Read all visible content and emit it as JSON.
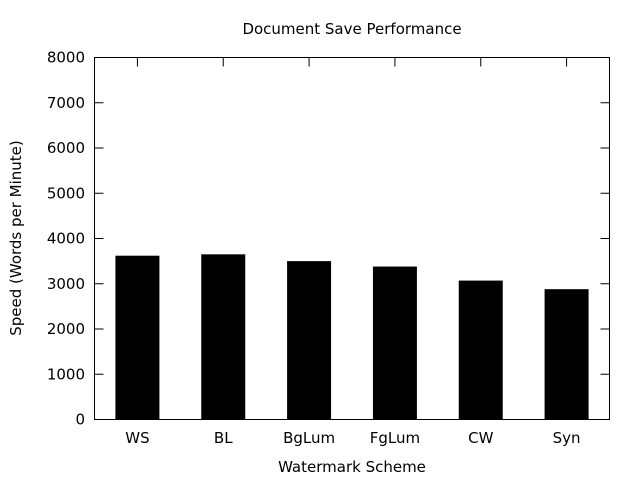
{
  "chart_data": {
    "type": "bar",
    "title": "Document Save Performance",
    "xlabel": "Watermark Scheme",
    "ylabel": "Speed (Words per Minute)",
    "categories": [
      "WS",
      "BL",
      "BgLum",
      "FgLum",
      "CW",
      "Syn"
    ],
    "values": [
      3620,
      3650,
      3500,
      3380,
      3070,
      2880
    ],
    "ylim": [
      0,
      8000
    ],
    "yticks": [
      0,
      1000,
      2000,
      3000,
      4000,
      5000,
      6000,
      7000,
      8000
    ],
    "grid": false,
    "bar_color": "#000000"
  }
}
